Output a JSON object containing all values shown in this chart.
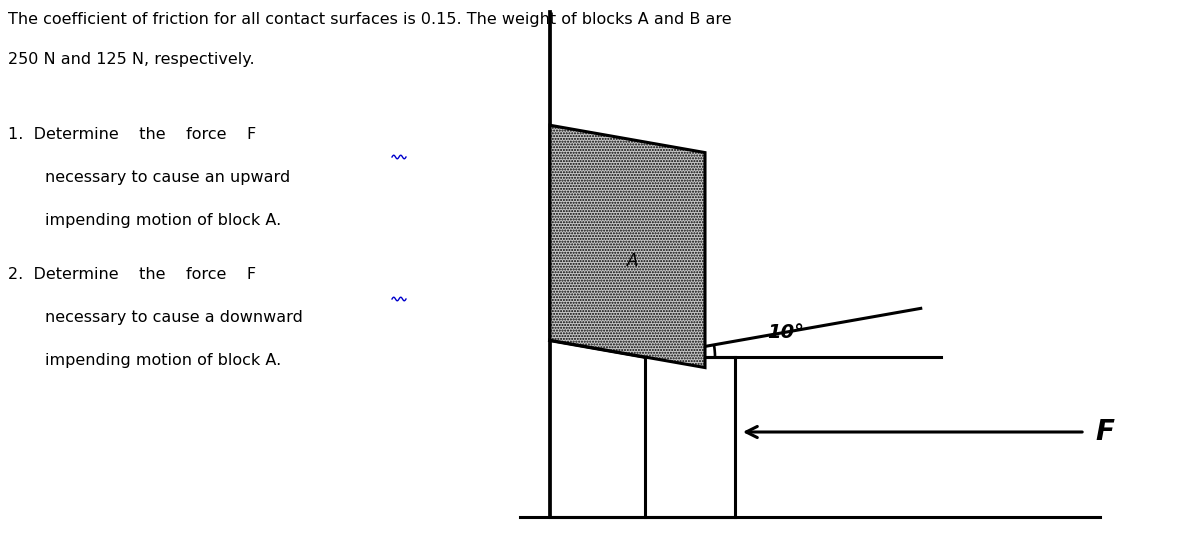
{
  "background_color": "#ffffff",
  "header_line1": "The coefficient of friction for all contact surfaces is 0.15. The weight of blocks A and B are",
  "header_line2": "250 N and 125 N, respectively.",
  "item1_line1": "1.  Determine    the    force    F",
  "item1_line2": "necessary to cause an upward",
  "item1_line3": "impending motion of block A.",
  "item2_line1": "2.  Determine    the    force    F",
  "item2_line2": "necessary to cause a downward",
  "item2_line3": "impending motion of block A.",
  "angle_label": "10°",
  "force_label": "F",
  "block_label": "A",
  "fig_width": 12.0,
  "fig_height": 5.57,
  "text_color": "#000000"
}
